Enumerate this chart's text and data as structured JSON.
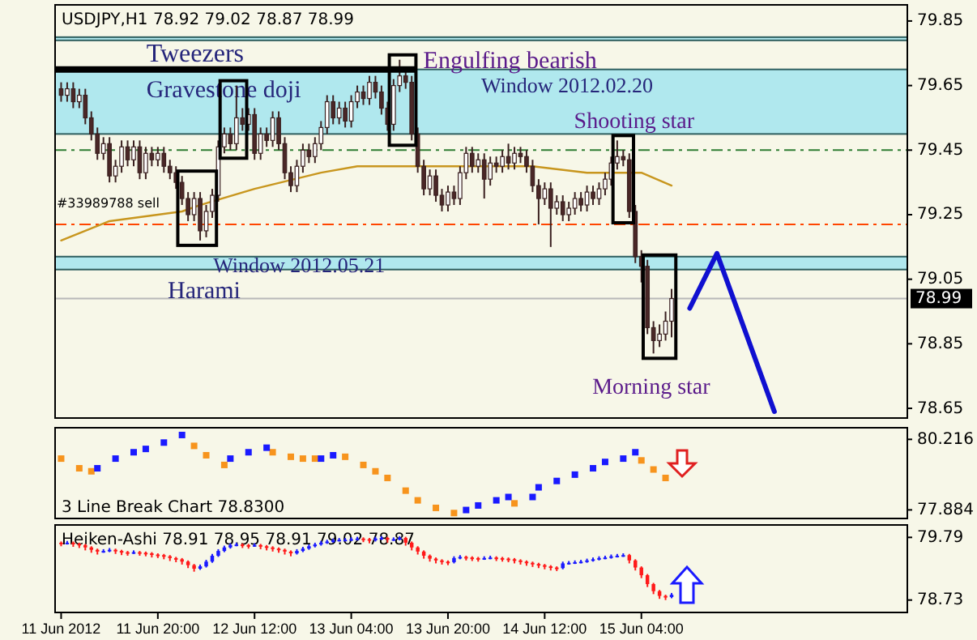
{
  "chart_data": [
    {
      "type": "candlestick",
      "title": "USDJPY,H1  78.92 79.02 78.87 78.99",
      "color": "#3a2020",
      "x": [
        "2012-06-11T04:00",
        "2012-06-11T05:00",
        "2012-06-11T06:00",
        "2012-06-11T07:00",
        "2012-06-11T08:00",
        "2012-06-11T09:00",
        "2012-06-11T10:00",
        "2012-06-11T11:00",
        "2012-06-11T12:00",
        "2012-06-11T13:00",
        "2012-06-11T14:00",
        "2012-06-11T15:00",
        "2012-06-11T16:00",
        "2012-06-11T17:00",
        "2012-06-11T18:00",
        "2012-06-11T19:00",
        "2012-06-11T20:00",
        "2012-06-11T21:00",
        "2012-06-11T22:00",
        "2012-06-11T23:00",
        "2012-06-12T00:00",
        "2012-06-12T01:00",
        "2012-06-12T02:00",
        "2012-06-12T03:00",
        "2012-06-12T04:00",
        "2012-06-12T05:00",
        "2012-06-12T06:00",
        "2012-06-12T07:00",
        "2012-06-12T08:00",
        "2012-06-12T09:00",
        "2012-06-12T10:00",
        "2012-06-12T11:00",
        "2012-06-12T12:00",
        "2012-06-12T13:00",
        "2012-06-12T14:00",
        "2012-06-12T15:00",
        "2012-06-12T16:00",
        "2012-06-12T17:00",
        "2012-06-12T18:00",
        "2012-06-12T19:00",
        "2012-06-12T20:00",
        "2012-06-12T21:00",
        "2012-06-12T22:00",
        "2012-06-12T23:00",
        "2012-06-13T00:00",
        "2012-06-13T01:00",
        "2012-06-13T02:00",
        "2012-06-13T03:00",
        "2012-06-13T04:00",
        "2012-06-13T05:00",
        "2012-06-13T06:00",
        "2012-06-13T07:00",
        "2012-06-13T08:00",
        "2012-06-13T09:00",
        "2012-06-13T10:00",
        "2012-06-13T11:00",
        "2012-06-13T12:00",
        "2012-06-13T13:00",
        "2012-06-13T14:00",
        "2012-06-13T15:00",
        "2012-06-13T16:00",
        "2012-06-13T17:00",
        "2012-06-13T18:00",
        "2012-06-13T19:00",
        "2012-06-13T20:00",
        "2012-06-13T21:00",
        "2012-06-13T22:00",
        "2012-06-13T23:00",
        "2012-06-14T00:00",
        "2012-06-14T01:00",
        "2012-06-14T02:00",
        "2012-06-14T03:00",
        "2012-06-14T04:00",
        "2012-06-14T05:00",
        "2012-06-14T06:00",
        "2012-06-14T07:00",
        "2012-06-14T08:00",
        "2012-06-14T09:00",
        "2012-06-14T10:00",
        "2012-06-14T11:00",
        "2012-06-14T12:00",
        "2012-06-14T13:00",
        "2012-06-14T14:00",
        "2012-06-14T15:00",
        "2012-06-14T16:00",
        "2012-06-14T17:00",
        "2012-06-14T18:00",
        "2012-06-14T19:00",
        "2012-06-14T20:00",
        "2012-06-14T21:00",
        "2012-06-14T22:00",
        "2012-06-14T23:00",
        "2012-06-15T00:00",
        "2012-06-15T01:00",
        "2012-06-15T02:00",
        "2012-06-15T03:00",
        "2012-06-15T04:00",
        "2012-06-15T05:00",
        "2012-06-15T06:00",
        "2012-06-15T07:00",
        "2012-06-15T08:00",
        "2012-06-15T09:00"
      ],
      "ohlc": [
        [
          79.64,
          79.66,
          79.6,
          79.62
        ],
        [
          79.62,
          79.66,
          79.6,
          79.64
        ],
        [
          79.64,
          79.66,
          79.58,
          79.6
        ],
        [
          79.6,
          79.64,
          79.58,
          79.62
        ],
        [
          79.62,
          79.64,
          79.53,
          79.55
        ],
        [
          79.55,
          79.57,
          79.48,
          79.5
        ],
        [
          79.5,
          79.52,
          79.42,
          79.44
        ],
        [
          79.44,
          79.49,
          79.42,
          79.47
        ],
        [
          79.47,
          79.49,
          79.35,
          79.37
        ],
        [
          79.37,
          79.42,
          79.35,
          79.4
        ],
        [
          79.4,
          79.48,
          79.38,
          79.46
        ],
        [
          79.46,
          79.48,
          79.4,
          79.42
        ],
        [
          79.42,
          79.48,
          79.4,
          79.46
        ],
        [
          79.46,
          79.48,
          79.36,
          79.38
        ],
        [
          79.38,
          79.46,
          79.36,
          79.44
        ],
        [
          79.44,
          79.46,
          79.4,
          79.42
        ],
        [
          79.42,
          79.46,
          79.4,
          79.44
        ],
        [
          79.44,
          79.46,
          79.38,
          79.4
        ],
        [
          79.4,
          79.42,
          79.36,
          79.38
        ],
        [
          79.38,
          79.4,
          79.33,
          79.35
        ],
        [
          79.35,
          79.37,
          79.28,
          79.3
        ],
        [
          79.3,
          79.32,
          79.23,
          79.25
        ],
        [
          79.25,
          79.32,
          79.23,
          79.3
        ],
        [
          79.3,
          79.32,
          79.17,
          79.2
        ],
        [
          79.2,
          79.28,
          79.18,
          79.26
        ],
        [
          79.26,
          79.33,
          79.24,
          79.31
        ],
        [
          79.31,
          79.48,
          79.29,
          79.46
        ],
        [
          79.46,
          79.52,
          79.44,
          79.5
        ],
        [
          79.5,
          79.52,
          79.45,
          79.47
        ],
        [
          79.47,
          79.65,
          79.45,
          79.55
        ],
        [
          79.55,
          79.58,
          79.51,
          79.53
        ],
        [
          79.53,
          79.58,
          79.51,
          79.56
        ],
        [
          79.56,
          79.58,
          79.42,
          79.44
        ],
        [
          79.44,
          79.52,
          79.42,
          79.5
        ],
        [
          79.5,
          79.52,
          79.46,
          79.48
        ],
        [
          79.48,
          79.57,
          79.46,
          79.55
        ],
        [
          79.55,
          79.57,
          79.45,
          79.47
        ],
        [
          79.47,
          79.49,
          79.36,
          79.38
        ],
        [
          79.38,
          79.4,
          79.32,
          79.34
        ],
        [
          79.34,
          79.42,
          79.32,
          79.4
        ],
        [
          79.4,
          79.47,
          79.38,
          79.45
        ],
        [
          79.45,
          79.47,
          79.41,
          79.43
        ],
        [
          79.43,
          79.49,
          79.41,
          79.47
        ],
        [
          79.47,
          79.54,
          79.45,
          79.52
        ],
        [
          79.52,
          79.62,
          79.5,
          79.6
        ],
        [
          79.6,
          79.62,
          79.53,
          79.55
        ],
        [
          79.55,
          79.6,
          79.53,
          79.58
        ],
        [
          79.58,
          79.6,
          79.52,
          79.54
        ],
        [
          79.54,
          79.62,
          79.52,
          79.6
        ],
        [
          79.6,
          79.65,
          79.58,
          79.63
        ],
        [
          79.63,
          79.65,
          79.59,
          79.61
        ],
        [
          79.61,
          79.68,
          79.59,
          79.66
        ],
        [
          79.66,
          79.68,
          79.61,
          79.63
        ],
        [
          79.63,
          79.65,
          79.56,
          79.58
        ],
        [
          79.58,
          79.6,
          79.51,
          79.53
        ],
        [
          79.53,
          79.67,
          79.51,
          79.65
        ],
        [
          79.65,
          79.73,
          79.63,
          79.68
        ],
        [
          79.68,
          79.7,
          79.64,
          79.66
        ],
        [
          79.66,
          79.68,
          79.48,
          79.5
        ],
        [
          79.5,
          79.52,
          79.38,
          79.4
        ],
        [
          79.4,
          79.42,
          79.31,
          79.33
        ],
        [
          79.33,
          79.39,
          79.31,
          79.37
        ],
        [
          79.37,
          79.39,
          79.29,
          79.31
        ],
        [
          79.31,
          79.33,
          79.26,
          79.28
        ],
        [
          79.28,
          79.34,
          79.26,
          79.32
        ],
        [
          79.32,
          79.34,
          79.28,
          79.3
        ],
        [
          79.3,
          79.4,
          79.28,
          79.38
        ],
        [
          79.38,
          79.46,
          79.36,
          79.44
        ],
        [
          79.44,
          79.46,
          79.38,
          79.4
        ],
        [
          79.4,
          79.44,
          79.38,
          79.42
        ],
        [
          79.42,
          79.44,
          79.3,
          79.36
        ],
        [
          79.36,
          79.43,
          79.34,
          79.41
        ],
        [
          79.41,
          79.43,
          79.38,
          79.4
        ],
        [
          79.4,
          79.45,
          79.38,
          79.43
        ],
        [
          79.43,
          79.47,
          79.39,
          79.41
        ],
        [
          79.41,
          79.46,
          79.39,
          79.44
        ],
        [
          79.44,
          79.46,
          79.41,
          79.43
        ],
        [
          79.43,
          79.45,
          79.38,
          79.4
        ],
        [
          79.4,
          79.42,
          79.32,
          79.34
        ],
        [
          79.34,
          79.36,
          79.22,
          79.3
        ],
        [
          79.3,
          79.35,
          79.28,
          79.33
        ],
        [
          79.33,
          79.35,
          79.15,
          79.27
        ],
        [
          79.27,
          79.31,
          79.25,
          79.29
        ],
        [
          79.29,
          79.31,
          79.23,
          79.25
        ],
        [
          79.25,
          79.29,
          79.23,
          79.27
        ],
        [
          79.27,
          79.32,
          79.25,
          79.3
        ],
        [
          79.3,
          79.32,
          79.26,
          79.28
        ],
        [
          79.28,
          79.34,
          79.26,
          79.32
        ],
        [
          79.32,
          79.34,
          79.28,
          79.3
        ],
        [
          79.3,
          79.35,
          79.28,
          79.33
        ],
        [
          79.33,
          79.38,
          79.31,
          79.36
        ],
        [
          79.36,
          79.43,
          79.34,
          79.41
        ],
        [
          79.41,
          79.48,
          79.39,
          79.43
        ],
        [
          79.43,
          79.45,
          79.4,
          79.42
        ],
        [
          79.42,
          79.44,
          79.24,
          79.26
        ],
        [
          79.26,
          79.28,
          79.1,
          79.12
        ],
        [
          79.12,
          79.14,
          79.04,
          79.09
        ],
        [
          79.09,
          79.11,
          78.88,
          78.9
        ],
        [
          78.9,
          78.92,
          78.82,
          78.86
        ],
        [
          78.86,
          78.91,
          78.84,
          78.88
        ],
        [
          78.88,
          78.95,
          78.86,
          78.92
        ],
        [
          78.92,
          79.02,
          78.87,
          78.99
        ]
      ],
      "colors": [
        "#4a2727",
        "#ffffff",
        "#4a2727",
        "#ffffff",
        "#4a2727",
        "#4a2727",
        "#4a2727",
        "#ffffff",
        "#4a2727",
        "#ffffff",
        "#ffffff",
        "#4a2727",
        "#ffffff",
        "#4a2727",
        "#ffffff",
        "#4a2727",
        "#ffffff",
        "#4a2727",
        "#4a2727",
        "#4a2727",
        "#4a2727",
        "#4a2727",
        "#ffffff",
        "#4a2727",
        "#ffffff",
        "#ffffff",
        "#ffffff",
        "#ffffff",
        "#4a2727",
        "#ffffff",
        "#4a2727",
        "#ffffff",
        "#4a2727",
        "#ffffff",
        "#4a2727",
        "#ffffff",
        "#4a2727",
        "#4a2727",
        "#4a2727",
        "#ffffff",
        "#ffffff",
        "#4a2727",
        "#ffffff",
        "#ffffff",
        "#ffffff",
        "#4a2727",
        "#ffffff",
        "#4a2727",
        "#ffffff",
        "#ffffff",
        "#4a2727",
        "#ffffff",
        "#4a2727",
        "#4a2727",
        "#4a2727",
        "#ffffff",
        "#ffffff",
        "#4a2727",
        "#4a2727",
        "#4a2727",
        "#4a2727",
        "#ffffff",
        "#4a2727",
        "#4a2727",
        "#ffffff",
        "#4a2727",
        "#ffffff",
        "#ffffff",
        "#4a2727",
        "#ffffff",
        "#4a2727",
        "#ffffff",
        "#4a2727",
        "#ffffff",
        "#4a2727",
        "#ffffff",
        "#4a2727",
        "#4a2727",
        "#4a2727",
        "#4a2727",
        "#ffffff",
        "#4a2727",
        "#ffffff",
        "#4a2727",
        "#ffffff",
        "#ffffff",
        "#4a2727",
        "#ffffff",
        "#4a2727",
        "#ffffff",
        "#ffffff",
        "#ffffff",
        "#ffffff",
        "#4a2727",
        "#4a2727",
        "#4a2727",
        "#4a2727",
        "#4a2727",
        "#4a2727",
        "#ffffff",
        "#ffffff",
        "#ffffff"
      ],
      "series": [
        {
          "type": "line",
          "color": "#c8961e",
          "x": [
            "2012-06-11T04:00",
            "2012-06-11T12:00",
            "2012-06-12T00:00",
            "2012-06-12T03:00",
            "2012-06-12T12:00",
            "2012-06-12T23:00",
            "2012-06-13T05:00",
            "2012-06-13T20:00",
            "2012-06-14T10:00",
            "2012-06-14T19:00",
            "2012-06-15T04:00",
            "2012-06-15T09:00"
          ],
          "values": [
            79.17,
            79.23,
            79.26,
            79.28,
            79.33,
            79.38,
            79.4,
            79.4,
            79.4,
            79.38,
            79.38,
            79.34
          ]
        },
        {
          "type": "line",
          "color": "#1010d0",
          "x": [
            "2012-06-15T12:00",
            "2012-06-15T16:30",
            "2012-06-16T02:00"
          ],
          "values": [
            78.96,
            79.13,
            78.64
          ]
        }
      ],
      "xlim": [
        "2012-06-11T03:00",
        "2012-06-17T00:00"
      ],
      "ylim": [
        78.62,
        79.9
      ],
      "yticks": [
        79.85,
        79.65,
        79.45,
        79.25,
        79.05,
        78.85,
        78.65
      ],
      "tick_labels": "y",
      "bands": [
        {
          "axis": "y",
          "from": 79.5,
          "to": 79.7,
          "color": "#b0e8ee"
        },
        {
          "axis": "y",
          "from": 79.08,
          "to": 79.12,
          "color": "#b0e8ee"
        },
        {
          "axis": "y",
          "from": 79.79,
          "to": 79.8,
          "color": "#b0e8ee"
        }
      ],
      "ref_lines": [
        {
          "axis": "y",
          "value": 79.45,
          "color": "#2e7d32",
          "line_style": "dashed"
        },
        {
          "axis": "y",
          "value": 79.22,
          "color": "#ff4500",
          "line_style": "dashed"
        },
        {
          "axis": "y",
          "value": 78.99,
          "label": "78.99",
          "color": "#b8b8b8",
          "line_style": "solid"
        }
      ],
      "annotations": [
        "Tweezers",
        "Engulfing bearish",
        "Gravestone doji",
        "Window 2012.02.20",
        "Shooting star",
        "#33989788 sell",
        "Window 2012.05.21",
        "Harami",
        "Morning star"
      ]
    },
    {
      "type": "scatter",
      "title": "3 Line Break Chart 78.8300",
      "marker": "square",
      "series": [
        {
          "color": "#f7941d",
          "x": [
            "2012-06-11T04:00",
            "2012-06-11T07:00",
            "2012-06-11T09:00",
            "2012-06-12T02:00",
            "2012-06-12T04:00",
            "2012-06-12T07:00",
            "2012-06-12T15:00",
            "2012-06-12T18:00",
            "2012-06-12T20:00",
            "2012-06-12T22:00",
            "2012-06-13T03:00",
            "2012-06-13T06:00",
            "2012-06-13T08:00",
            "2012-06-13T10:00",
            "2012-06-13T13:00",
            "2012-06-13T15:00",
            "2012-06-13T18:00",
            "2012-06-13T21:00",
            "2012-06-14T07:00",
            "2012-06-15T04:00",
            "2012-06-15T06:00",
            "2012-06-15T08:00"
          ],
          "values": [
            79.58,
            79.26,
            79.16,
            80.0,
            79.69,
            79.37,
            79.79,
            79.64,
            79.58,
            79.58,
            79.64,
            79.37,
            79.16,
            78.94,
            78.52,
            78.2,
            77.95,
            77.78,
            78.1,
            79.52,
            79.22,
            78.94
          ]
        },
        {
          "color": "#1a1aff",
          "x": [
            "2012-06-11T10:00",
            "2012-06-11T13:00",
            "2012-06-11T16:00",
            "2012-06-11T18:00",
            "2012-06-11T21:00",
            "2012-06-12T00:00",
            "2012-06-12T08:00",
            "2012-06-12T11:00",
            "2012-06-12T14:00",
            "2012-06-12T23:00",
            "2012-06-13T01:00",
            "2012-06-13T23:00",
            "2012-06-14T01:00",
            "2012-06-14T04:00",
            "2012-06-14T06:00",
            "2012-06-14T10:00",
            "2012-06-14T11:00",
            "2012-06-14T14:00",
            "2012-06-14T17:00",
            "2012-06-14T20:00",
            "2012-06-14T22:00",
            "2012-06-15T01:00",
            "2012-06-15T03:00"
          ],
          "values": [
            79.26,
            79.58,
            79.79,
            79.9,
            80.11,
            80.36,
            79.58,
            79.79,
            79.94,
            79.58,
            79.69,
            77.88,
            78.03,
            78.2,
            78.31,
            78.31,
            78.63,
            78.84,
            79.05,
            79.26,
            79.47,
            79.58,
            79.79
          ]
        }
      ],
      "xlim": [
        "2012-06-11T03:00",
        "2012-06-17T00:00"
      ],
      "ylim": [
        77.6,
        80.6
      ],
      "yticks": [
        80.216,
        77.884
      ],
      "tick_labels": "y"
    },
    {
      "type": "candlestick",
      "title": "Heiken-Ashi 78.91 78.95 78.91 79.02 78.87",
      "x": [
        "2012-06-11T04:00",
        "2012-06-11T05:00",
        "2012-06-11T06:00",
        "2012-06-11T07:00",
        "2012-06-11T08:00",
        "2012-06-11T09:00",
        "2012-06-11T10:00",
        "2012-06-11T11:00",
        "2012-06-11T12:00",
        "2012-06-11T13:00",
        "2012-06-11T14:00",
        "2012-06-11T15:00",
        "2012-06-11T16:00",
        "2012-06-11T17:00",
        "2012-06-11T18:00",
        "2012-06-11T19:00",
        "2012-06-11T20:00",
        "2012-06-11T21:00",
        "2012-06-11T22:00",
        "2012-06-11T23:00",
        "2012-06-12T00:00",
        "2012-06-12T01:00",
        "2012-06-12T02:00",
        "2012-06-12T03:00",
        "2012-06-12T04:00",
        "2012-06-12T05:00",
        "2012-06-12T06:00",
        "2012-06-12T07:00",
        "2012-06-12T08:00",
        "2012-06-12T09:00",
        "2012-06-12T10:00",
        "2012-06-12T11:00",
        "2012-06-12T12:00",
        "2012-06-12T13:00",
        "2012-06-12T14:00",
        "2012-06-12T15:00",
        "2012-06-12T16:00",
        "2012-06-12T17:00",
        "2012-06-12T18:00",
        "2012-06-12T19:00",
        "2012-06-12T20:00",
        "2012-06-12T21:00",
        "2012-06-12T22:00",
        "2012-06-12T23:00",
        "2012-06-13T00:00",
        "2012-06-13T01:00",
        "2012-06-13T02:00",
        "2012-06-13T03:00",
        "2012-06-13T04:00",
        "2012-06-13T05:00",
        "2012-06-13T06:00",
        "2012-06-13T07:00",
        "2012-06-13T08:00",
        "2012-06-13T09:00",
        "2012-06-13T10:00",
        "2012-06-13T11:00",
        "2012-06-13T12:00",
        "2012-06-13T13:00",
        "2012-06-13T14:00",
        "2012-06-13T15:00",
        "2012-06-13T16:00",
        "2012-06-13T17:00",
        "2012-06-13T18:00",
        "2012-06-13T19:00",
        "2012-06-13T20:00",
        "2012-06-13T21:00",
        "2012-06-13T22:00",
        "2012-06-13T23:00",
        "2012-06-14T00:00",
        "2012-06-14T01:00",
        "2012-06-14T02:00",
        "2012-06-14T03:00",
        "2012-06-14T04:00",
        "2012-06-14T05:00",
        "2012-06-14T06:00",
        "2012-06-14T07:00",
        "2012-06-14T08:00",
        "2012-06-14T09:00",
        "2012-06-14T10:00",
        "2012-06-14T11:00",
        "2012-06-14T12:00",
        "2012-06-14T13:00",
        "2012-06-14T14:00",
        "2012-06-14T15:00",
        "2012-06-14T16:00",
        "2012-06-14T17:00",
        "2012-06-14T18:00",
        "2012-06-14T19:00",
        "2012-06-14T20:00",
        "2012-06-14T21:00",
        "2012-06-14T22:00",
        "2012-06-14T23:00",
        "2012-06-15T00:00",
        "2012-06-15T01:00",
        "2012-06-15T02:00",
        "2012-06-15T03:00",
        "2012-06-15T04:00",
        "2012-06-15T05:00",
        "2012-06-15T06:00",
        "2012-06-15T07:00",
        "2012-06-15T08:00",
        "2012-06-15T09:00"
      ],
      "ohlc": [
        [
          79.7,
          79.72,
          79.64,
          79.69
        ],
        [
          79.69,
          79.73,
          79.67,
          79.7
        ],
        [
          79.7,
          79.72,
          79.63,
          79.68
        ],
        [
          79.68,
          79.7,
          79.61,
          79.66
        ],
        [
          79.66,
          79.68,
          79.57,
          79.62
        ],
        [
          79.62,
          79.64,
          79.53,
          79.58
        ],
        [
          79.58,
          79.6,
          79.5,
          79.55
        ],
        [
          79.55,
          79.59,
          79.53,
          79.56
        ],
        [
          79.56,
          79.61,
          79.54,
          79.58
        ],
        [
          79.58,
          79.6,
          79.51,
          79.56
        ],
        [
          79.56,
          79.58,
          79.49,
          79.54
        ],
        [
          79.54,
          79.56,
          79.48,
          79.53
        ],
        [
          79.53,
          79.57,
          79.51,
          79.54
        ],
        [
          79.54,
          79.56,
          79.48,
          79.53
        ],
        [
          79.53,
          79.55,
          79.47,
          79.52
        ],
        [
          79.52,
          79.54,
          79.45,
          79.5
        ],
        [
          79.5,
          79.52,
          79.44,
          79.49
        ],
        [
          79.49,
          79.51,
          79.42,
          79.47
        ],
        [
          79.47,
          79.49,
          79.39,
          79.44
        ],
        [
          79.44,
          79.46,
          79.37,
          79.42
        ],
        [
          79.42,
          79.44,
          79.33,
          79.38
        ],
        [
          79.38,
          79.4,
          79.27,
          79.32
        ],
        [
          79.32,
          79.34,
          79.21,
          79.26
        ],
        [
          79.26,
          79.33,
          79.24,
          79.3
        ],
        [
          79.3,
          79.41,
          79.28,
          79.38
        ],
        [
          79.38,
          79.51,
          79.36,
          79.48
        ],
        [
          79.48,
          79.59,
          79.46,
          79.56
        ],
        [
          79.56,
          79.65,
          79.54,
          79.62
        ],
        [
          79.62,
          79.69,
          79.6,
          79.66
        ],
        [
          79.66,
          79.7,
          79.64,
          79.67
        ],
        [
          79.67,
          79.69,
          79.61,
          79.66
        ],
        [
          79.66,
          79.68,
          79.6,
          79.65
        ],
        [
          79.65,
          79.69,
          79.63,
          79.66
        ],
        [
          79.66,
          79.68,
          79.59,
          79.64
        ],
        [
          79.64,
          79.66,
          79.57,
          79.62
        ],
        [
          79.62,
          79.64,
          79.55,
          79.6
        ],
        [
          79.6,
          79.62,
          79.53,
          79.58
        ],
        [
          79.58,
          79.6,
          79.5,
          79.55
        ],
        [
          79.55,
          79.57,
          79.47,
          79.52
        ],
        [
          79.52,
          79.59,
          79.5,
          79.56
        ],
        [
          79.56,
          79.63,
          79.54,
          79.6
        ],
        [
          79.6,
          79.67,
          79.58,
          79.64
        ],
        [
          79.64,
          79.7,
          79.62,
          79.67
        ],
        [
          79.67,
          79.73,
          79.65,
          79.7
        ],
        [
          79.7,
          79.75,
          79.68,
          79.72
        ],
        [
          79.72,
          79.77,
          79.7,
          79.74
        ],
        [
          79.74,
          79.78,
          79.72,
          79.75
        ],
        [
          79.75,
          79.78,
          79.73,
          79.75
        ],
        [
          79.75,
          79.79,
          79.73,
          79.76
        ],
        [
          79.76,
          79.8,
          79.74,
          79.77
        ],
        [
          79.77,
          79.79,
          79.71,
          79.76
        ],
        [
          79.76,
          79.78,
          79.69,
          79.74
        ],
        [
          79.74,
          79.8,
          79.72,
          79.77
        ],
        [
          79.77,
          79.81,
          79.75,
          79.78
        ],
        [
          79.78,
          79.8,
          79.7,
          79.75
        ],
        [
          79.75,
          79.79,
          79.73,
          79.76
        ],
        [
          79.76,
          79.81,
          79.74,
          79.78
        ],
        [
          79.78,
          79.8,
          79.65,
          79.7
        ],
        [
          79.7,
          79.72,
          79.57,
          79.62
        ],
        [
          79.62,
          79.64,
          79.5,
          79.55
        ],
        [
          79.55,
          79.57,
          79.43,
          79.48
        ],
        [
          79.48,
          79.5,
          79.38,
          79.43
        ],
        [
          79.43,
          79.45,
          79.35,
          79.4
        ],
        [
          79.4,
          79.42,
          79.33,
          79.38
        ],
        [
          79.38,
          79.4,
          79.32,
          79.37
        ],
        [
          79.37,
          79.47,
          79.35,
          79.44
        ],
        [
          79.44,
          79.49,
          79.42,
          79.46
        ],
        [
          79.46,
          79.48,
          79.4,
          79.45
        ],
        [
          79.45,
          79.47,
          79.39,
          79.44
        ],
        [
          79.44,
          79.46,
          79.38,
          79.43
        ],
        [
          79.43,
          79.47,
          79.41,
          79.44
        ],
        [
          79.44,
          79.48,
          79.42,
          79.45
        ],
        [
          79.45,
          79.47,
          79.39,
          79.44
        ],
        [
          79.44,
          79.46,
          79.38,
          79.43
        ],
        [
          79.43,
          79.45,
          79.37,
          79.42
        ],
        [
          79.42,
          79.44,
          79.35,
          79.4
        ],
        [
          79.4,
          79.42,
          79.33,
          79.38
        ],
        [
          79.38,
          79.4,
          79.31,
          79.36
        ],
        [
          79.36,
          79.38,
          79.29,
          79.34
        ],
        [
          79.34,
          79.36,
          79.27,
          79.32
        ],
        [
          79.32,
          79.34,
          79.25,
          79.3
        ],
        [
          79.3,
          79.32,
          79.23,
          79.28
        ],
        [
          79.28,
          79.3,
          79.22,
          79.27
        ],
        [
          79.27,
          79.38,
          79.25,
          79.35
        ],
        [
          79.35,
          79.39,
          79.33,
          79.36
        ],
        [
          79.36,
          79.4,
          79.34,
          79.37
        ],
        [
          79.37,
          79.41,
          79.35,
          79.38
        ],
        [
          79.38,
          79.43,
          79.36,
          79.4
        ],
        [
          79.4,
          79.45,
          79.38,
          79.42
        ],
        [
          79.42,
          79.47,
          79.4,
          79.44
        ],
        [
          79.44,
          79.48,
          79.42,
          79.45
        ],
        [
          79.45,
          79.5,
          79.43,
          79.47
        ],
        [
          79.47,
          79.51,
          79.45,
          79.48
        ],
        [
          79.48,
          79.52,
          79.46,
          79.49
        ],
        [
          79.49,
          79.51,
          79.35,
          79.4
        ],
        [
          79.4,
          79.42,
          79.23,
          79.28
        ],
        [
          79.28,
          79.3,
          79.1,
          79.15
        ],
        [
          79.15,
          79.17,
          78.95,
          79.0
        ],
        [
          79.0,
          79.02,
          78.83,
          78.88
        ],
        [
          78.88,
          78.9,
          78.75,
          78.8
        ],
        [
          78.8,
          78.82,
          78.73,
          78.78
        ],
        [
          78.78,
          78.85,
          78.76,
          78.82
        ]
      ],
      "colors": [
        "#ff1a1a",
        "#1a1aff",
        "#ff1a1a",
        "#ff1a1a",
        "#ff1a1a",
        "#ff1a1a",
        "#ff1a1a",
        "#1a1aff",
        "#1a1aff",
        "#ff1a1a",
        "#ff1a1a",
        "#ff1a1a",
        "#1a1aff",
        "#ff1a1a",
        "#ff1a1a",
        "#ff1a1a",
        "#ff1a1a",
        "#ff1a1a",
        "#ff1a1a",
        "#ff1a1a",
        "#ff1a1a",
        "#ff1a1a",
        "#ff1a1a",
        "#1a1aff",
        "#1a1aff",
        "#1a1aff",
        "#1a1aff",
        "#1a1aff",
        "#1a1aff",
        "#1a1aff",
        "#ff1a1a",
        "#ff1a1a",
        "#1a1aff",
        "#ff1a1a",
        "#ff1a1a",
        "#ff1a1a",
        "#ff1a1a",
        "#ff1a1a",
        "#ff1a1a",
        "#1a1aff",
        "#1a1aff",
        "#1a1aff",
        "#1a1aff",
        "#1a1aff",
        "#1a1aff",
        "#1a1aff",
        "#1a1aff",
        "#1a1aff",
        "#1a1aff",
        "#1a1aff",
        "#ff1a1a",
        "#ff1a1a",
        "#1a1aff",
        "#1a1aff",
        "#ff1a1a",
        "#1a1aff",
        "#1a1aff",
        "#ff1a1a",
        "#ff1a1a",
        "#ff1a1a",
        "#ff1a1a",
        "#ff1a1a",
        "#ff1a1a",
        "#ff1a1a",
        "#ff1a1a",
        "#1a1aff",
        "#1a1aff",
        "#ff1a1a",
        "#ff1a1a",
        "#ff1a1a",
        "#1a1aff",
        "#1a1aff",
        "#ff1a1a",
        "#ff1a1a",
        "#ff1a1a",
        "#ff1a1a",
        "#ff1a1a",
        "#ff1a1a",
        "#ff1a1a",
        "#ff1a1a",
        "#ff1a1a",
        "#ff1a1a",
        "#ff1a1a",
        "#1a1aff",
        "#1a1aff",
        "#1a1aff",
        "#1a1aff",
        "#1a1aff",
        "#1a1aff",
        "#1a1aff",
        "#1a1aff",
        "#1a1aff",
        "#1a1aff",
        "#1a1aff",
        "#ff1a1a",
        "#ff1a1a",
        "#ff1a1a",
        "#ff1a1a",
        "#ff1a1a",
        "#ff1a1a",
        "#ff1a1a",
        "#1a1aff"
      ],
      "xlim": [
        "2012-06-11T03:00",
        "2012-06-17T00:00"
      ],
      "xticks": [
        {
          "value": "2012-06-11T04:00",
          "label": "11 Jun 2012"
        },
        {
          "value": "2012-06-11T20:00",
          "label": "11 Jun 20:00"
        },
        {
          "value": "2012-06-12T12:00",
          "label": "12 Jun 12:00"
        },
        {
          "value": "2012-06-13T04:00",
          "label": "13 Jun 04:00"
        },
        {
          "value": "2012-06-13T20:00",
          "label": "13 Jun 20:00"
        },
        {
          "value": "2012-06-14T12:00",
          "label": "14 Jun 12:00"
        },
        {
          "value": "2012-06-15T04:00",
          "label": "15 Jun 04:00"
        }
      ],
      "ylim": [
        78.52,
        80.0
      ],
      "yticks": [
        79.79,
        78.73
      ]
    }
  ]
}
